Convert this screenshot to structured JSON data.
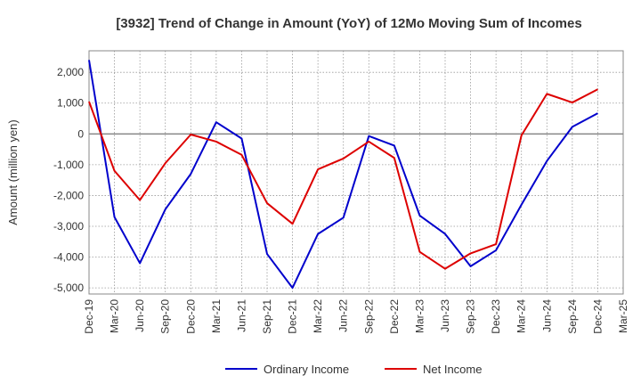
{
  "chart_data": {
    "type": "line",
    "title": "[3932]  Trend of Change in Amount (YoY) of 12Mo Moving Sum of Incomes",
    "xlabel": "",
    "ylabel": "Amount (million yen)",
    "ylim": [
      -5200,
      2700
    ],
    "yticks": [
      2000,
      1000,
      0,
      -1000,
      -2000,
      -3000,
      -4000,
      -5000
    ],
    "ytick_labels": [
      "2,000",
      "1,000",
      "0",
      "-1,000",
      "-2,000",
      "-3,000",
      "-4,000",
      "-5,000"
    ],
    "categories": [
      "Dec-19",
      "Mar-20",
      "Jun-20",
      "Sep-20",
      "Dec-20",
      "Mar-21",
      "Jun-21",
      "Sep-21",
      "Dec-21",
      "Mar-22",
      "Jun-22",
      "Sep-22",
      "Dec-22",
      "Mar-23",
      "Jun-23",
      "Sep-23",
      "Dec-23",
      "Mar-24",
      "Jun-24",
      "Sep-24",
      "Dec-24",
      "Mar-25"
    ],
    "grid": true,
    "legend_position": "bottom",
    "series": [
      {
        "name": "Ordinary Income",
        "color": "#0000cc",
        "values": [
          2400,
          -2700,
          -4200,
          -2450,
          -1300,
          380,
          -150,
          -3900,
          -5000,
          -3250,
          -2720,
          -70,
          -380,
          -2650,
          -3250,
          -4300,
          -3780,
          -2300,
          -880,
          230,
          670,
          null
        ]
      },
      {
        "name": "Net Income",
        "color": "#dd0000",
        "values": [
          1050,
          -1200,
          -2150,
          -950,
          -20,
          -250,
          -680,
          -2250,
          -2920,
          -1150,
          -800,
          -250,
          -780,
          -3830,
          -4380,
          -3880,
          -3580,
          -50,
          1300,
          1020,
          1450,
          null
        ]
      }
    ]
  }
}
